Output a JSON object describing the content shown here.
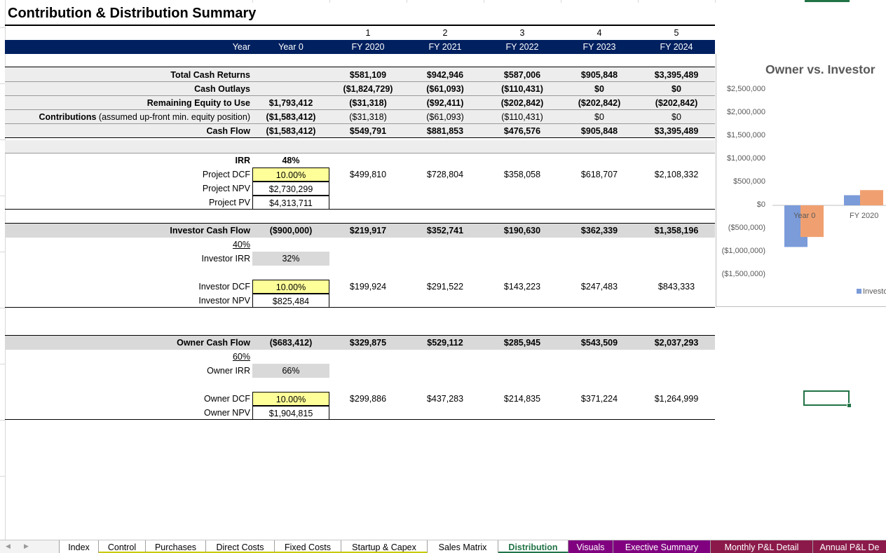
{
  "title": "Contribution & Distribution Summary",
  "header": {
    "period_numbers": [
      "1",
      "2",
      "3",
      "4",
      "5"
    ],
    "year_label": "Year",
    "year0": "Year 0",
    "fiscal_years": [
      "FY 2020",
      "FY 2021",
      "FY 2022",
      "FY 2023",
      "FY 2024"
    ]
  },
  "summary_rows": [
    {
      "label": "Total Cash Returns",
      "year0": "",
      "values": [
        "$581,109",
        "$942,946",
        "$587,006",
        "$905,848",
        "$3,395,489"
      ]
    },
    {
      "label": "Cash Outlays",
      "year0": "",
      "values": [
        "($1,824,729)",
        "($61,093)",
        "($110,431)",
        "$0",
        "$0"
      ]
    },
    {
      "label": "Remaining Equity to Use",
      "year0": "$1,793,412",
      "values": [
        "($31,318)",
        "($92,411)",
        "($202,842)",
        "($202,842)",
        "($202,842)"
      ]
    },
    {
      "label_bold": "Contributions",
      "label_rest": " (assumed up-front min. equity position)",
      "year0": "($1,583,412)",
      "values": [
        "($31,318)",
        "($61,093)",
        "($110,431)",
        "$0",
        "$0"
      ]
    },
    {
      "label": "Cash Flow",
      "year0": "($1,583,412)",
      "values": [
        "$549,791",
        "$881,853",
        "$476,576",
        "$905,848",
        "$3,395,489"
      ]
    }
  ],
  "project": {
    "irr_label": "IRR",
    "irr_value": "48%",
    "dcf_label": "Project DCF",
    "dcf_value": "10.00%",
    "dcf_values": [
      "$499,810",
      "$728,804",
      "$358,058",
      "$618,707",
      "$2,108,332"
    ],
    "npv_label": "Project NPV",
    "npv_value": "$2,730,299",
    "pv_label": "Project PV",
    "pv_value": "$4,313,711"
  },
  "investor": {
    "cf_label": "Investor Cash Flow",
    "cf_year0": "($900,000)",
    "cf_values": [
      "$219,917",
      "$352,741",
      "$190,630",
      "$362,339",
      "$1,358,196"
    ],
    "share": "40%",
    "irr_label": "Investor IRR",
    "irr_value": "32%",
    "dcf_label": "Investor DCF",
    "dcf_value": "10.00%",
    "dcf_values": [
      "$199,924",
      "$291,522",
      "$143,223",
      "$247,483",
      "$843,333"
    ],
    "npv_label": "Investor NPV",
    "npv_value": "$825,484"
  },
  "owner": {
    "cf_label": "Owner Cash Flow",
    "cf_year0": "($683,412)",
    "cf_values": [
      "$329,875",
      "$529,112",
      "$285,945",
      "$543,509",
      "$2,037,293"
    ],
    "share": "60%",
    "irr_label": "Owner IRR",
    "irr_value": "66%",
    "dcf_label": "Owner DCF",
    "dcf_value": "10.00%",
    "dcf_values": [
      "$299,886",
      "$437,283",
      "$214,835",
      "$371,224",
      "$1,264,999"
    ],
    "npv_label": "Owner NPV",
    "npv_value": "$1,904,815"
  },
  "chart_data": {
    "type": "bar",
    "title": "Owner vs. Investor",
    "categories": [
      "Year 0",
      "FY 2020"
    ],
    "y_ticks": [
      "$2,500,000",
      "$2,000,000",
      "$1,500,000",
      "$1,000,000",
      "$500,000",
      "$0",
      "($500,000)",
      "($1,000,000)",
      "($1,500,000)"
    ],
    "ylim": [
      -1500000,
      2500000
    ],
    "series": [
      {
        "name": "Investo",
        "color": "#7b9bd9",
        "values": [
          -900000,
          219917
        ]
      },
      {
        "color": "#f0a070",
        "values": [
          -683412,
          329875
        ]
      }
    ],
    "legend_text": "Investo",
    "legend_position": "bottom"
  },
  "tabs": [
    {
      "label": "Index"
    },
    {
      "label": "Control"
    },
    {
      "label": "Purchases"
    },
    {
      "label": "Direct Costs"
    },
    {
      "label": "Fixed Costs"
    },
    {
      "label": "Startup & Capex"
    },
    {
      "label": "Sales Matrix"
    },
    {
      "label": "Distribution"
    },
    {
      "label": "Visuals"
    },
    {
      "label": "Exective Summary"
    },
    {
      "label": "Monthly P&L Detail"
    },
    {
      "label": "Annual P&L De"
    }
  ],
  "colors": {
    "header_navy": "#002060",
    "input_yellow": "#ffff99",
    "grey_band": "#d9d9d9",
    "tab_active": "#217346",
    "tab_purple": "#800080",
    "tab_maroon": "#8b1a4a"
  }
}
